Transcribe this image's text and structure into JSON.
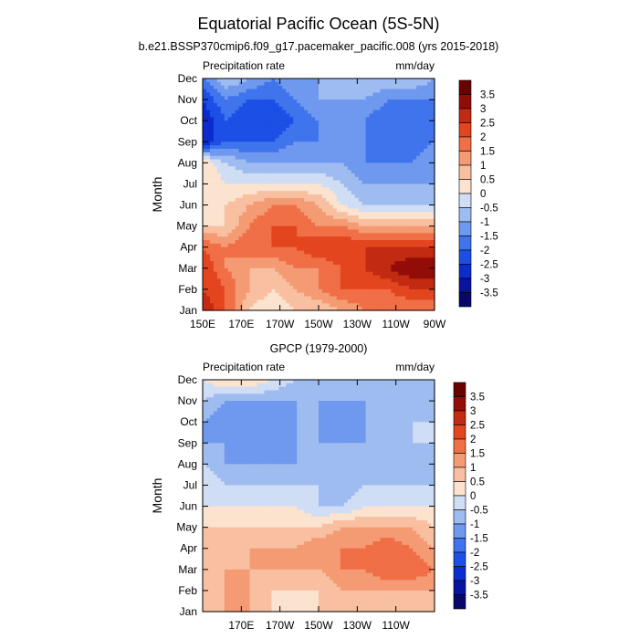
{
  "figure": {
    "title": "Equatorial Pacific Ocean (5S-5N)"
  },
  "chart_data": [
    {
      "type": "heatmap",
      "panel_title": "b.e21.BSSP370cmip6.f09_g17.pacemaker_pacific.008 (yrs 2015-2018)",
      "left_label": "Precipitation rate",
      "right_label": "mm/day",
      "ylabel": "Month",
      "xlabel": "",
      "x_tick_labels": [
        "150E",
        "170E",
        "170W",
        "150W",
        "130W",
        "110W",
        "90W"
      ],
      "x_ticks_deg_east": [
        150,
        170,
        190,
        210,
        230,
        250,
        270
      ],
      "xlim_deg_east": [
        150,
        270
      ],
      "y_tick_labels": [
        "Jan",
        "Feb",
        "Mar",
        "Apr",
        "May",
        "Jun",
        "Jul",
        "Aug",
        "Sep",
        "Oct",
        "Nov",
        "Dec"
      ],
      "colorbar_ticks": [
        "3.5",
        "3",
        "2.5",
        "2",
        "1.5",
        "1",
        "0.5",
        "0",
        "-0.5",
        "-1",
        "-1.5",
        "-2",
        "-2.5",
        "-3",
        "-3.5"
      ],
      "lon_grid": [
        150,
        162,
        174,
        186,
        198,
        210,
        222,
        234,
        246,
        258,
        270
      ],
      "values_mm_per_day": [
        [
          3.0,
          2.0,
          0.5,
          0.0,
          0.5,
          0.5,
          1.0,
          1.5,
          1.5,
          1.5,
          1.5
        ],
        [
          2.5,
          2.0,
          1.0,
          0.5,
          1.0,
          1.5,
          2.0,
          2.0,
          2.0,
          2.5,
          2.5
        ],
        [
          2.5,
          1.5,
          1.0,
          1.0,
          1.5,
          1.5,
          2.0,
          2.5,
          3.0,
          3.5,
          3.5
        ],
        [
          2.0,
          1.5,
          2.0,
          2.0,
          2.0,
          2.5,
          2.5,
          2.5,
          2.5,
          2.5,
          2.5
        ],
        [
          0.5,
          0.5,
          1.5,
          2.0,
          2.0,
          1.5,
          1.5,
          1.0,
          1.0,
          1.0,
          1.0
        ],
        [
          0.0,
          0.5,
          1.0,
          1.5,
          1.5,
          1.0,
          0.0,
          -0.5,
          -0.5,
          -0.5,
          -0.5
        ],
        [
          0.5,
          0.0,
          0.0,
          0.0,
          0.0,
          0.0,
          -0.5,
          -1.0,
          -1.0,
          -1.0,
          -1.0
        ],
        [
          0.5,
          -0.5,
          -1.0,
          -1.0,
          -1.0,
          -1.0,
          -1.0,
          -1.5,
          -1.5,
          -1.5,
          -1.0
        ],
        [
          -3.0,
          -2.0,
          -2.0,
          -2.0,
          -1.5,
          -1.5,
          -1.5,
          -1.5,
          -2.0,
          -2.0,
          -1.5
        ],
        [
          -3.0,
          -2.0,
          -2.5,
          -2.5,
          -2.0,
          -1.5,
          -1.5,
          -1.5,
          -2.0,
          -2.0,
          -1.5
        ],
        [
          -2.5,
          -1.5,
          -2.0,
          -2.0,
          -1.5,
          -1.0,
          -1.0,
          -1.0,
          -1.5,
          -1.5,
          -1.5
        ],
        [
          -1.5,
          -0.5,
          -1.0,
          -1.5,
          -1.0,
          -1.0,
          -0.5,
          -0.5,
          -0.5,
          -0.5,
          -1.0
        ]
      ]
    },
    {
      "type": "heatmap",
      "panel_title": "GPCP (1979-2000)",
      "left_label": "Precipitation rate",
      "right_label": "mm/day",
      "ylabel": "Month",
      "xlabel": "",
      "x_tick_labels": [
        "170E",
        "170W",
        "150W",
        "130W",
        "110W"
      ],
      "x_ticks_deg_east": [
        170,
        190,
        210,
        230,
        250
      ],
      "xlim_deg_east": [
        150,
        270
      ],
      "y_tick_labels": [
        "Jan",
        "Feb",
        "Mar",
        "Apr",
        "May",
        "Jun",
        "Jul",
        "Aug",
        "Sep",
        "Oct",
        "Nov",
        "Dec"
      ],
      "colorbar_ticks": [
        "3.5",
        "3",
        "2.5",
        "2",
        "1.5",
        "1",
        "0.5",
        "0",
        "-0.5",
        "-1",
        "-1.5",
        "-2",
        "-2.5",
        "-3",
        "-3.5"
      ],
      "lon_grid": [
        150,
        162,
        174,
        186,
        198,
        210,
        222,
        234,
        246,
        258,
        270
      ],
      "values_mm_per_day": [
        [
          0.5,
          1.0,
          1.0,
          0.5,
          0.0,
          0.5,
          0.5,
          0.5,
          0.5,
          0.5,
          0.5
        ],
        [
          0.5,
          1.0,
          1.0,
          0.5,
          0.5,
          0.5,
          1.0,
          1.0,
          1.0,
          1.0,
          1.0
        ],
        [
          0.5,
          1.0,
          1.0,
          1.0,
          1.0,
          1.0,
          1.5,
          1.5,
          2.0,
          2.0,
          1.5
        ],
        [
          0.5,
          0.5,
          1.0,
          1.0,
          1.0,
          1.5,
          1.5,
          1.5,
          2.0,
          1.5,
          1.0
        ],
        [
          0.5,
          0.5,
          0.5,
          0.5,
          0.5,
          0.5,
          1.0,
          1.0,
          1.0,
          1.0,
          0.5
        ],
        [
          0.0,
          0.0,
          0.0,
          0.0,
          0.0,
          -0.5,
          -0.5,
          0.0,
          0.0,
          0.0,
          0.0
        ],
        [
          0.0,
          -0.5,
          -0.5,
          -0.5,
          -0.5,
          -0.5,
          -1.0,
          -0.5,
          -0.5,
          -0.5,
          -0.5
        ],
        [
          -0.5,
          -1.0,
          -1.0,
          -1.0,
          -1.0,
          -1.0,
          -1.0,
          -1.0,
          -1.0,
          -1.0,
          -0.5
        ],
        [
          -1.0,
          -1.0,
          -1.5,
          -1.5,
          -1.0,
          -1.0,
          -1.0,
          -1.0,
          -1.0,
          -0.5,
          -0.5
        ],
        [
          -1.0,
          -1.5,
          -1.5,
          -1.5,
          -1.0,
          -1.0,
          -1.5,
          -1.0,
          -1.0,
          -0.5,
          -0.5
        ],
        [
          -0.5,
          -1.0,
          -1.0,
          -1.0,
          -1.0,
          -1.0,
          -1.0,
          -1.0,
          -1.0,
          -1.0,
          -0.5
        ],
        [
          0.0,
          0.5,
          0.5,
          0.0,
          -0.5,
          -0.5,
          -0.5,
          -0.5,
          -0.5,
          -0.5,
          -0.5
        ]
      ]
    }
  ],
  "colors": {
    "levels": [
      "#08086b",
      "#0a12a0",
      "#0b2ccf",
      "#1c4fe6",
      "#3f74ec",
      "#6f99ee",
      "#9fbcf0",
      "#cfddf5",
      "#fbe3cf",
      "#f8c0a0",
      "#f49b74",
      "#f06f46",
      "#e3451f",
      "#c22a12",
      "#930d08",
      "#6b0000"
    ],
    "contour_line": "#ffffff",
    "axis": "#000000"
  }
}
